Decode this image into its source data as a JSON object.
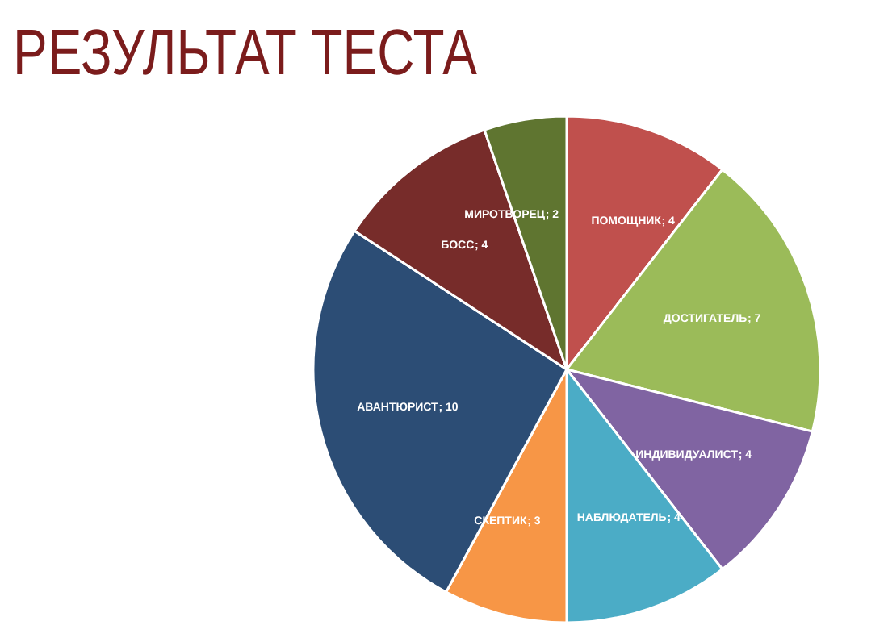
{
  "chart_data": {
    "type": "pie",
    "title": "РЕЗУЛЬТАТ ТЕСТА",
    "categories": [
      "ПОМОЩНИК",
      "ДОСТИГАТЕЛЬ",
      "ИНДИВИДУАЛИСТ",
      "НАБЛЮДАТЕЛЬ",
      "СКЕПТИК",
      "АВАНТЮРИСТ",
      "БОСС",
      "МИРОТВОРЕЦ"
    ],
    "values": [
      4,
      7,
      4,
      4,
      3,
      10,
      4,
      2
    ],
    "colors": [
      "#c0504d",
      "#9bbb59",
      "#8064a2",
      "#4bacc6",
      "#f79646",
      "#2c4d75",
      "#772c2a",
      "#5f7530"
    ],
    "value_labels": [
      "; 4",
      "; 7",
      "; 4",
      "; 4",
      "; 3",
      "; 10",
      "; 4",
      "; 2"
    ],
    "legend": false
  }
}
